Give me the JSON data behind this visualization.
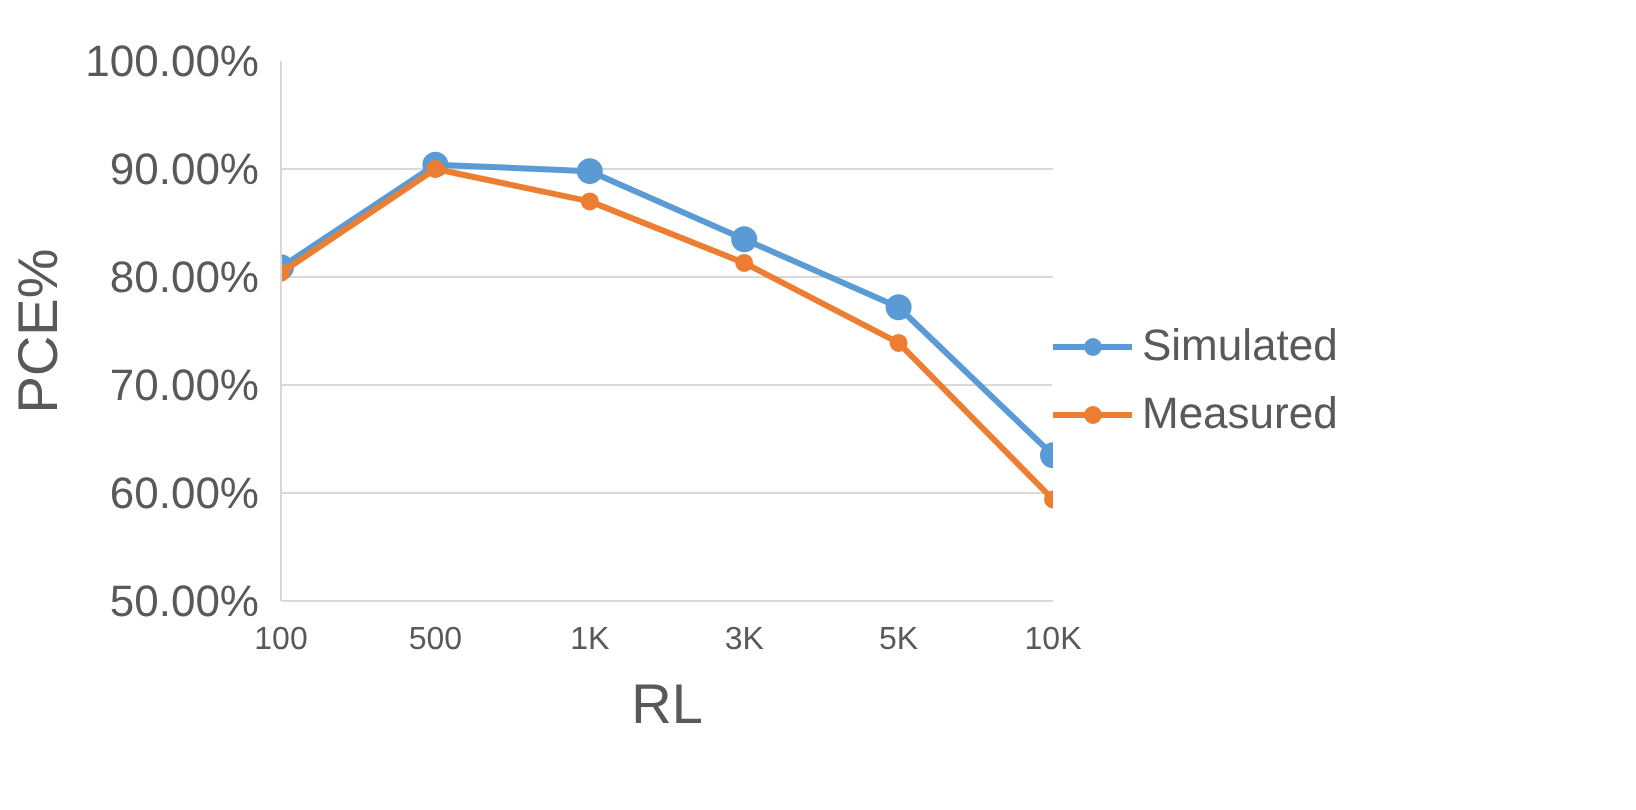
{
  "chart_data": {
    "type": "line",
    "xlabel": "RL",
    "ylabel": "PCE%",
    "categories": [
      "100",
      "500",
      "1K",
      "3K",
      "5K",
      "10K"
    ],
    "series": [
      {
        "name": "Simulated",
        "color": "#5b9bd5",
        "values": [
          80.9,
          90.4,
          89.8,
          83.5,
          77.2,
          63.5
        ]
      },
      {
        "name": "Measured",
        "color": "#ed7d31",
        "values": [
          80.4,
          90.0,
          87.0,
          81.3,
          73.9,
          59.4
        ]
      }
    ],
    "ylim": [
      50,
      100
    ],
    "yticks": [
      {
        "value": 50,
        "label": "50.00%"
      },
      {
        "value": 60,
        "label": "60.00%"
      },
      {
        "value": 70,
        "label": "70.00%"
      },
      {
        "value": 80,
        "label": "80.00%"
      },
      {
        "value": 90,
        "label": "90.00%"
      },
      {
        "value": 100,
        "label": "100.00%"
      }
    ],
    "grid": "y",
    "legend": "right",
    "marker": "circle",
    "line_style": "solid"
  }
}
